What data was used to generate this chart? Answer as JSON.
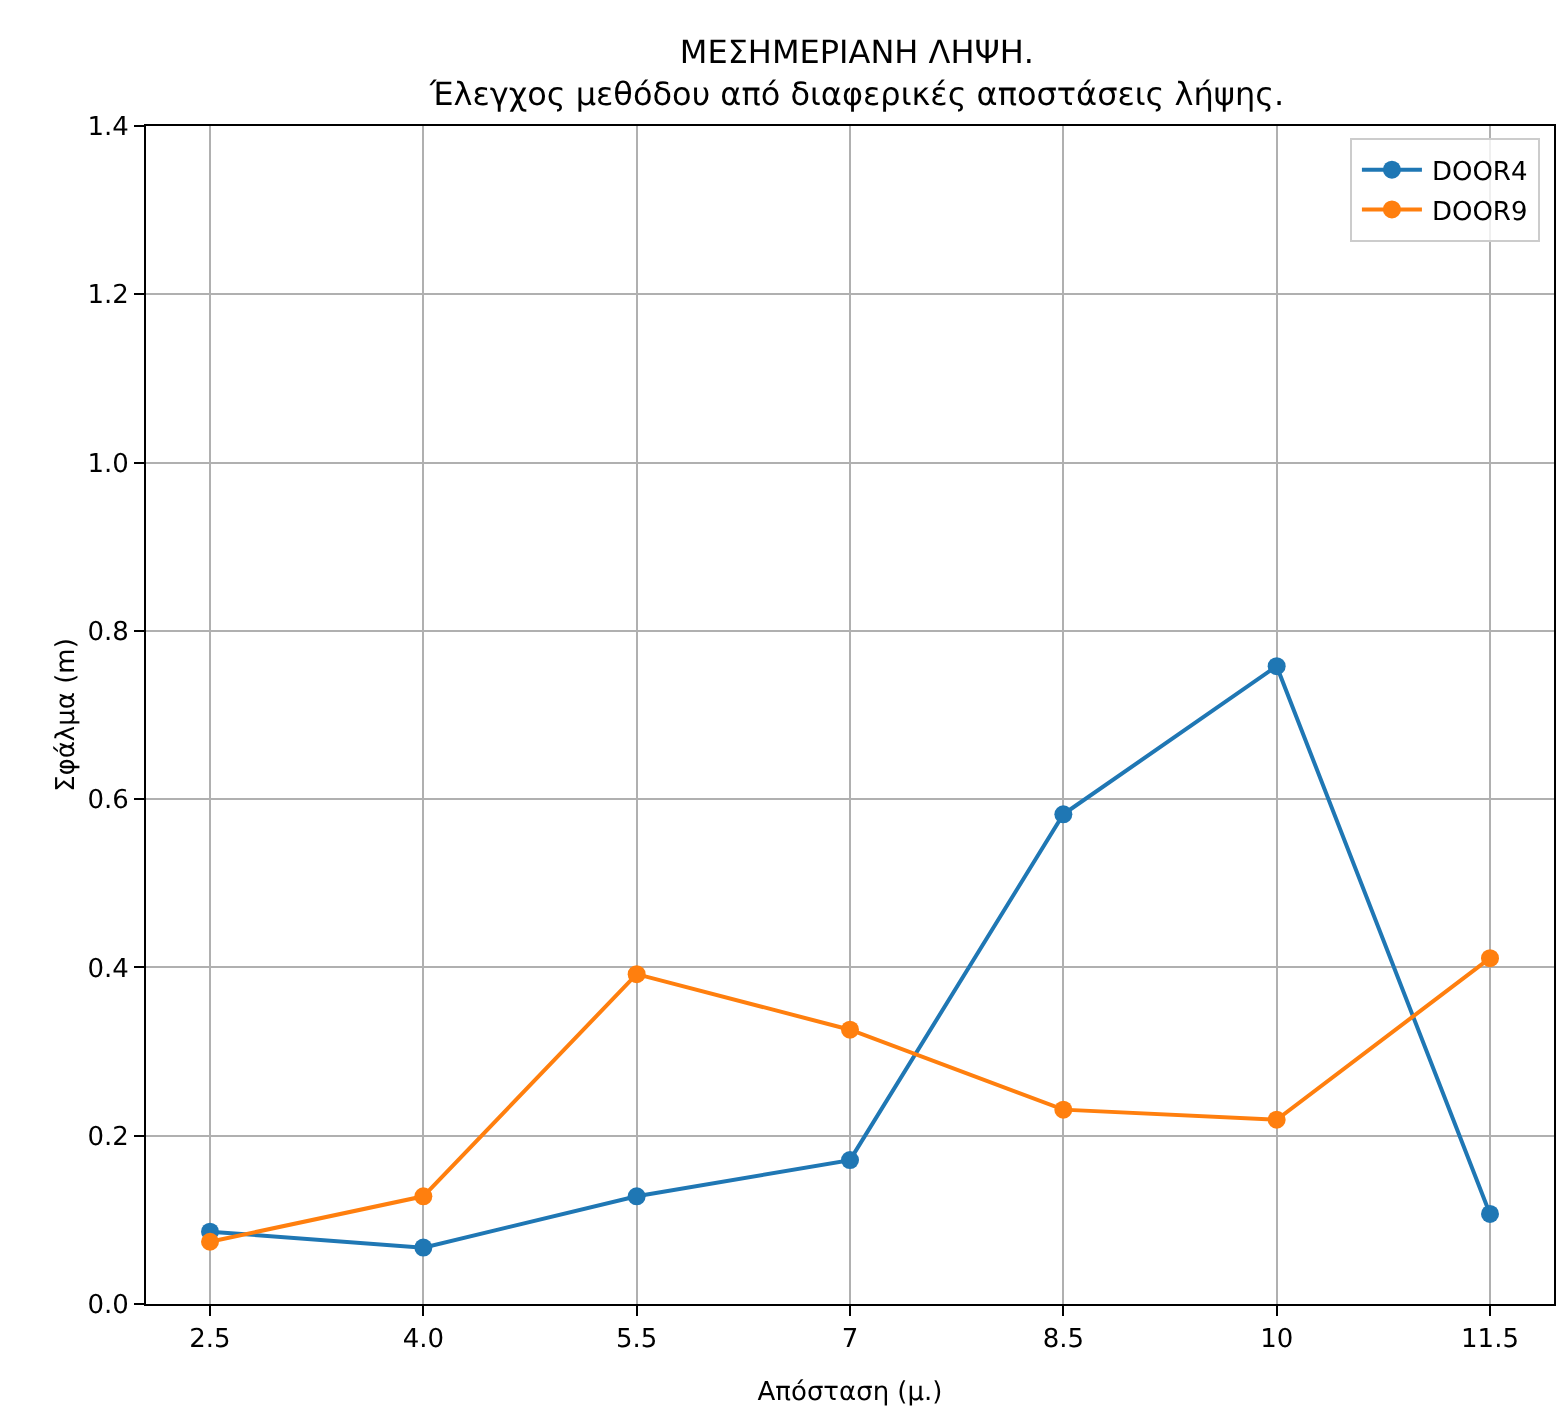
{
  "chart_data": {
    "type": "line",
    "title": "ΜΕΣΗΜΕΡΙΑΝΗ ΛΗΨΗ.\nΈλεγχος μεθόδου από διαφερικές αποστάσεις λήψης.",
    "xlabel": "Απόσταση (μ.)",
    "ylabel": "Σφάλμα (m)",
    "x": [
      2.5,
      4.0,
      5.5,
      7,
      8.5,
      10,
      11.5
    ],
    "series": [
      {
        "name": "DOOR4",
        "color": "#1f77b4",
        "values": [
          0.086,
          0.067,
          0.128,
          0.171,
          0.582,
          0.758,
          0.107
        ]
      },
      {
        "name": "DOOR9",
        "color": "#ff7f0e",
        "values": [
          0.074,
          0.128,
          0.392,
          0.326,
          0.231,
          0.219,
          0.411
        ]
      }
    ],
    "xlim": [
      2.05,
      11.95
    ],
    "xticks": [
      {
        "value": 2.5,
        "label": "2.5"
      },
      {
        "value": 4.0,
        "label": "4.0"
      },
      {
        "value": 5.5,
        "label": "5.5"
      },
      7,
      {
        "value": 8.5,
        "label": "8.5"
      },
      10,
      {
        "value": 11.5,
        "label": "11.5"
      }
    ],
    "ylim": [
      0,
      1.4
    ],
    "yticks": [
      {
        "value": 0,
        "label": "0.0"
      },
      {
        "value": 0.2,
        "label": "0.2"
      },
      {
        "value": 0.4,
        "label": "0.4"
      },
      {
        "value": 0.6,
        "label": "0.6"
      },
      {
        "value": 0.8,
        "label": "0.8"
      },
      {
        "value": 1.0,
        "label": "1.0"
      },
      {
        "value": 1.2,
        "label": "1.2"
      },
      {
        "value": 1.4,
        "label": "1.4"
      }
    ],
    "grid": true,
    "legend": "top right",
    "marker": "circle",
    "line_style": "solid"
  }
}
